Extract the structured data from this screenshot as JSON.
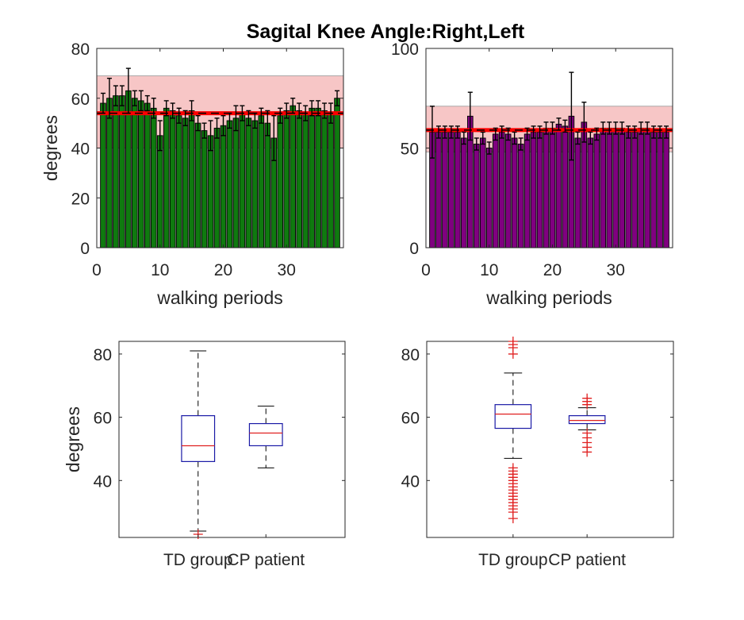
{
  "figure_title": "Sagital Knee Angle:Right,Left",
  "chart_data": [
    {
      "type": "bar",
      "panel": "top-left",
      "xlabel": "walking periods",
      "ylabel": "degrees",
      "xlim": [
        0,
        39
      ],
      "ylim": [
        0,
        80
      ],
      "xticks": [
        0,
        10,
        20,
        30
      ],
      "yticks": [
        0,
        20,
        40,
        60,
        80
      ],
      "bar_color": "#0f7a0f",
      "band": {
        "low": 40,
        "high": 69,
        "mean": 54,
        "band_color": "#f7c6c6",
        "mean_color": "#ff0000"
      },
      "values": [
        58,
        60,
        61,
        61,
        63,
        60,
        59,
        58,
        56,
        45,
        56,
        55,
        53,
        52,
        55,
        50,
        47,
        45,
        48,
        49,
        51,
        52,
        54,
        52,
        51,
        53,
        50,
        44,
        53,
        55,
        57,
        55,
        54,
        56,
        56,
        55,
        54,
        60
      ],
      "errors": [
        4,
        8,
        4,
        4,
        9,
        3,
        4,
        3,
        4,
        6,
        3,
        3,
        3,
        3,
        4,
        3,
        3,
        6,
        4,
        4,
        3,
        5,
        3,
        3,
        3,
        3,
        5,
        9,
        3,
        3,
        3,
        3,
        3,
        3,
        3,
        3,
        4,
        3
      ]
    },
    {
      "type": "bar",
      "panel": "top-right",
      "xlabel": "walking periods",
      "ylabel": "",
      "xlim": [
        0,
        39
      ],
      "ylim": [
        0,
        100
      ],
      "xticks": [
        0,
        10,
        20,
        30
      ],
      "yticks": [
        0,
        50,
        100
      ],
      "bar_color": "#800080",
      "band": {
        "low": 48,
        "high": 71,
        "mean": 59,
        "band_color": "#f7c6c6",
        "mean_color": "#ff0000"
      },
      "values": [
        58,
        58,
        58,
        58,
        58,
        55,
        66,
        52,
        55,
        50,
        57,
        58,
        57,
        55,
        52,
        57,
        58,
        58,
        60,
        60,
        62,
        61,
        66,
        55,
        63,
        55,
        57,
        60,
        60,
        60,
        60,
        58,
        58,
        60,
        60,
        58,
        58,
        58
      ],
      "errors": [
        13,
        3,
        3,
        3,
        3,
        3,
        12,
        3,
        3,
        3,
        3,
        3,
        3,
        3,
        3,
        3,
        3,
        3,
        3,
        3,
        3,
        3,
        22,
        3,
        10,
        3,
        3,
        3,
        3,
        3,
        3,
        3,
        3,
        3,
        3,
        3,
        3,
        3
      ]
    },
    {
      "type": "box",
      "panel": "bottom-left",
      "ylabel": "degrees",
      "ylim": [
        22,
        84
      ],
      "yticks": [
        40,
        60,
        80
      ],
      "categories": [
        "TD group",
        "CP patient"
      ],
      "boxes": [
        {
          "q1": 46,
          "median": 51,
          "q3": 60.5,
          "whisker_low": 24,
          "whisker_high": 81,
          "outliers": [
            23
          ]
        },
        {
          "q1": 51,
          "median": 55,
          "q3": 58,
          "whisker_low": 44,
          "whisker_high": 63.5,
          "outliers": []
        }
      ]
    },
    {
      "type": "box",
      "panel": "bottom-right",
      "ylabel": "",
      "ylim": [
        22,
        84
      ],
      "yticks": [
        40,
        60,
        80
      ],
      "categories": [
        "TD group",
        "CP patient"
      ],
      "boxes": [
        {
          "q1": 56.5,
          "median": 61,
          "q3": 64,
          "whisker_low": 47,
          "whisker_high": 74,
          "outliers": [
            28,
            30,
            31,
            32,
            33,
            34,
            35,
            36,
            37,
            38,
            39,
            40,
            41,
            42,
            43,
            44,
            80,
            82,
            83,
            84
          ]
        },
        {
          "q1": 58,
          "median": 59,
          "q3": 60.5,
          "whisker_low": 56,
          "whisker_high": 63,
          "outliers": [
            49,
            50.5,
            52,
            53.5,
            55,
            64,
            65,
            66
          ]
        }
      ]
    }
  ]
}
